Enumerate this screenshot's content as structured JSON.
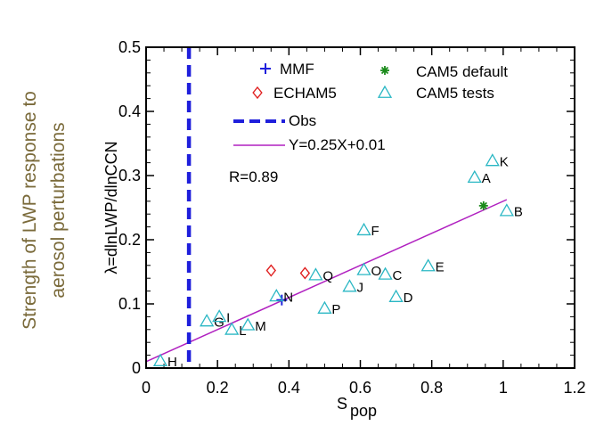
{
  "chart_data": {
    "type": "scatter",
    "title": "",
    "xlabel_main": "S",
    "xlabel_sub": "pop",
    "ylabel": "λ=dlnLWP/dlnCCN",
    "outer_ylabel_lines": [
      "Strength of LWP response to",
      "aerosol perturbations"
    ],
    "xlim": [
      0,
      1.2
    ],
    "ylim": [
      0,
      0.5
    ],
    "xticks": [
      0,
      0.2,
      0.4,
      0.6,
      0.8,
      1,
      1.2
    ],
    "xtick_labels": [
      "0",
      "0.2",
      "0.4",
      "0.6",
      "0.8",
      "1",
      "1.2"
    ],
    "yticks": [
      0,
      0.1,
      0.2,
      0.3,
      0.4,
      0.5
    ],
    "ytick_labels": [
      "0",
      "0.1",
      "0.2",
      "0.3",
      "0.4",
      "0.5"
    ],
    "legend_placement": "top",
    "series": [
      {
        "name": "MMF",
        "marker": "plus",
        "color": "#1f1fdc",
        "points": [
          {
            "x": 0.38,
            "y": 0.106,
            "label": ""
          }
        ]
      },
      {
        "name": "ECHAM5",
        "marker": "diamond",
        "color": "#e02020",
        "points": [
          {
            "x": 0.35,
            "y": 0.152,
            "label": ""
          },
          {
            "x": 0.445,
            "y": 0.148,
            "label": ""
          }
        ]
      },
      {
        "name": "CAM5 default",
        "marker": "asterisk",
        "color": "#1a8a1a",
        "points": [
          {
            "x": 0.945,
            "y": 0.253,
            "label": ""
          }
        ]
      },
      {
        "name": "CAM5 tests",
        "marker": "triangle",
        "color": "#2ab7c4",
        "points": [
          {
            "x": 0.92,
            "y": 0.297,
            "label": "A"
          },
          {
            "x": 1.01,
            "y": 0.245,
            "label": "B"
          },
          {
            "x": 0.67,
            "y": 0.146,
            "label": "C"
          },
          {
            "x": 0.7,
            "y": 0.111,
            "label": "D"
          },
          {
            "x": 0.79,
            "y": 0.159,
            "label": "E"
          },
          {
            "x": 0.61,
            "y": 0.215,
            "label": "F"
          },
          {
            "x": 0.17,
            "y": 0.073,
            "label": "G"
          },
          {
            "x": 0.04,
            "y": 0.011,
            "label": "H"
          },
          {
            "x": 0.205,
            "y": 0.08,
            "label": "I"
          },
          {
            "x": 0.57,
            "y": 0.127,
            "label": "J"
          },
          {
            "x": 0.97,
            "y": 0.323,
            "label": "K"
          },
          {
            "x": 0.24,
            "y": 0.06,
            "label": "L"
          },
          {
            "x": 0.285,
            "y": 0.067,
            "label": "M"
          },
          {
            "x": 0.365,
            "y": 0.112,
            "label": "N"
          },
          {
            "x": 0.61,
            "y": 0.153,
            "label": "O"
          },
          {
            "x": 0.5,
            "y": 0.093,
            "label": "P"
          },
          {
            "x": 0.475,
            "y": 0.145,
            "label": "Q"
          }
        ]
      }
    ],
    "obs": {
      "name": "Obs",
      "x": 0.12,
      "color": "#1f1fdc"
    },
    "fit": {
      "name": "Y=0.25X+0.01",
      "slope": 0.25,
      "intercept": 0.01,
      "x_range": [
        0,
        1.01
      ],
      "color": "#b020c0"
    },
    "annotation": "R=0.89"
  }
}
